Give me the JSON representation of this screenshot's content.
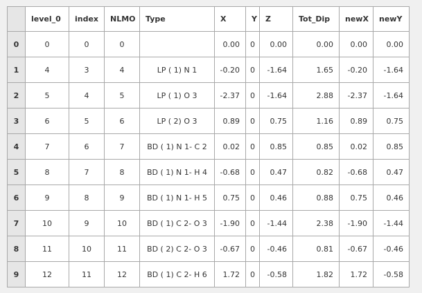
{
  "columns": [
    "level_0",
    "index",
    "NLMO",
    "Type",
    "X",
    "Y",
    "Z",
    "Tot_Dip",
    "newX",
    "newY"
  ],
  "rows": [
    {
      "idx": "0",
      "cells": [
        "0",
        "0",
        "0",
        "",
        "0.00",
        "0",
        "0.00",
        "0.00",
        "0.00",
        "0.00"
      ]
    },
    {
      "idx": "1",
      "cells": [
        "4",
        "3",
        "4",
        "LP ( 1) N 1",
        "-0.20",
        "0",
        "-1.64",
        "1.65",
        "-0.20",
        "-1.64"
      ]
    },
    {
      "idx": "2",
      "cells": [
        "5",
        "4",
        "5",
        "LP ( 1) O 3",
        "-2.37",
        "0",
        "-1.64",
        "2.88",
        "-2.37",
        "-1.64"
      ]
    },
    {
      "idx": "3",
      "cells": [
        "6",
        "5",
        "6",
        "LP ( 2) O 3",
        "0.89",
        "0",
        "0.75",
        "1.16",
        "0.89",
        "0.75"
      ]
    },
    {
      "idx": "4",
      "cells": [
        "7",
        "6",
        "7",
        "BD ( 1) N 1- C 2",
        "0.02",
        "0",
        "0.85",
        "0.85",
        "0.02",
        "0.85"
      ]
    },
    {
      "idx": "5",
      "cells": [
        "8",
        "7",
        "8",
        "BD ( 1) N 1- H 4",
        "-0.68",
        "0",
        "0.47",
        "0.82",
        "-0.68",
        "0.47"
      ]
    },
    {
      "idx": "6",
      "cells": [
        "9",
        "8",
        "9",
        "BD ( 1) N 1- H 5",
        "0.75",
        "0",
        "0.46",
        "0.88",
        "0.75",
        "0.46"
      ]
    },
    {
      "idx": "7",
      "cells": [
        "10",
        "9",
        "10",
        "BD ( 1) C 2- O 3",
        "-1.90",
        "0",
        "-1.44",
        "2.38",
        "-1.90",
        "-1.44"
      ]
    },
    {
      "idx": "8",
      "cells": [
        "11",
        "10",
        "11",
        "BD ( 2) C 2- O 3",
        "-0.67",
        "0",
        "-0.46",
        "0.81",
        "-0.67",
        "-0.46"
      ]
    },
    {
      "idx": "9",
      "cells": [
        "12",
        "11",
        "12",
        "BD ( 1) C 2- H 6",
        "1.72",
        "0",
        "-0.58",
        "1.82",
        "1.72",
        "-0.58"
      ]
    }
  ]
}
